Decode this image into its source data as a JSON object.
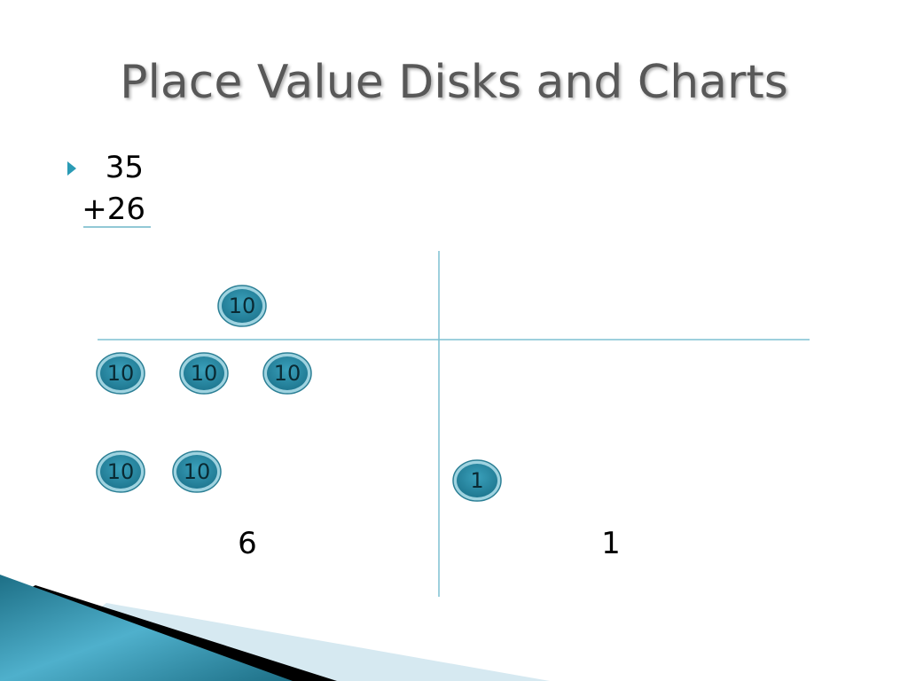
{
  "title": "Place Value Disks and Charts",
  "problem": {
    "top": "35",
    "bottom": "+26"
  },
  "disks": [
    {
      "label": "10"
    },
    {
      "label": "10"
    },
    {
      "label": "10"
    },
    {
      "label": "10"
    },
    {
      "label": "10"
    },
    {
      "label": "10"
    },
    {
      "label": "1"
    }
  ],
  "results": {
    "tens": "6",
    "ones": "1"
  }
}
